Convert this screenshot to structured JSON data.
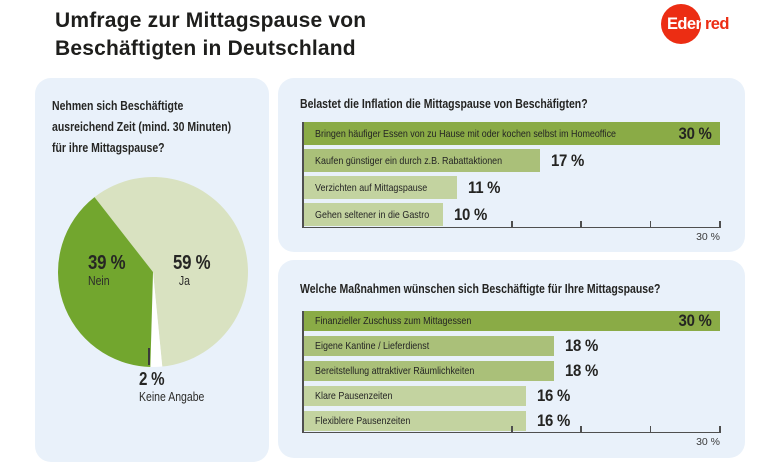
{
  "header": {
    "title": "Umfrage zur Mittagspause von\nBeschäftigten in Deutschland",
    "logo": {
      "part1": "Eden",
      "part2": "red",
      "brand_red": "#ec2d13"
    }
  },
  "pie_panel": {
    "question": "Nehmen sich Beschäftigte\nausreichend Zeit (mind. 30 Minuten)\nfür ihre Mittagspause?"
  },
  "colors": {
    "panel_background": "#e9f1fa",
    "pie_yes_light_green": "#d9e2c1",
    "pie_no_dark_green": "#72a62e",
    "pie_gap_white": "#ffffff",
    "bar_dark": "#8aab46",
    "bar_medium": "#aac079",
    "bar_light": "#c3d3a0",
    "axis_gray": "#4f4f4f",
    "text_dark": "#242422",
    "logo_red": "#ec2d13"
  },
  "chart_data": [
    {
      "type": "pie",
      "title": "Nehmen sich Beschäftigte ausreichend Zeit (mind. 30 Minuten) für ihre Mittagspause?",
      "start_angle_deg": -38,
      "clockwise": true,
      "slices": [
        {
          "label": "Ja",
          "value": 59,
          "value_label": "59 %",
          "color": "#d9e2c1"
        },
        {
          "label": "Keine Angabe",
          "value": 2,
          "value_label": "2 %",
          "color": "#ffffff"
        },
        {
          "label": "Nein",
          "value": 39,
          "value_label": "39 %",
          "color": "#72a62e"
        }
      ]
    },
    {
      "type": "bar",
      "orientation": "horizontal",
      "title": "Belastet die Inflation die Mittagspause von Beschäfigten?",
      "categories": [
        "Bringen häufiger Essen von zu Hause mit oder kochen selbst im Homeoffice",
        "Kaufen günstiger ein durch z.B. Rabattaktionen",
        "Verzichten auf Mittagspause",
        "Gehen seltener in die Gastro"
      ],
      "values": [
        30,
        17,
        11,
        10
      ],
      "value_labels": [
        "30 %",
        "17 %",
        "11 %",
        "10 %"
      ],
      "bar_colors": [
        "#8aab46",
        "#aac079",
        "#c3d3a0",
        "#c3d3a0"
      ],
      "xlim": [
        0,
        30
      ],
      "ticks": [
        15,
        20,
        25,
        30
      ],
      "axis_max_label": "30 %",
      "grid": false,
      "legend": false
    },
    {
      "type": "bar",
      "orientation": "horizontal",
      "title": "Welche Maßnahmen wünschen sich Beschäftigte für Ihre Mittagspause?",
      "categories": [
        "Finanzieller Zuschuss zum Mittagessen",
        "Eigene Kantine / Lieferdienst",
        "Bereitstellung attraktiver Räumlichkeiten",
        "Klare Pausenzeiten",
        "Flexiblere Pausenzeiten"
      ],
      "values": [
        30,
        18,
        18,
        16,
        16
      ],
      "value_labels": [
        "30 %",
        "18 %",
        "18 %",
        "16 %",
        "16 %"
      ],
      "bar_colors": [
        "#8aab46",
        "#aac079",
        "#aac079",
        "#c3d3a0",
        "#c3d3a0"
      ],
      "xlim": [
        0,
        30
      ],
      "ticks": [
        15,
        20,
        25,
        30
      ],
      "axis_max_label": "30 %",
      "grid": false,
      "legend": false
    }
  ]
}
